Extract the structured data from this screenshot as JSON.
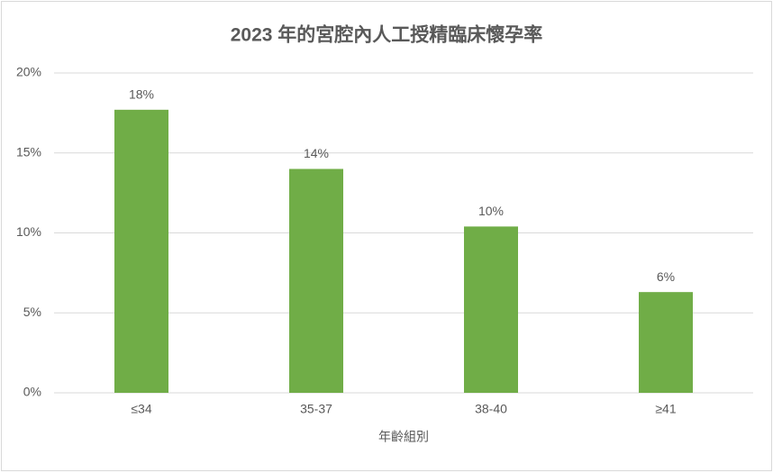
{
  "chart_data": {
    "type": "bar",
    "title": "2023 年的宮腔內人工授精臨床懷孕率",
    "x_label": "年齡組別",
    "categories": [
      "≤34",
      "35-37",
      "38-40",
      "≥41"
    ],
    "values": [
      17.7,
      14.0,
      10.4,
      6.3
    ],
    "value_labels": [
      "18%",
      "14%",
      "10%",
      "6%"
    ],
    "color": "#70ad47",
    "ylim": [
      0,
      20
    ],
    "yticks": [
      {
        "value": 0,
        "label": "0%"
      },
      {
        "value": 5,
        "label": "5%"
      },
      {
        "value": 10,
        "label": "10%"
      },
      {
        "value": 15,
        "label": "15%"
      },
      {
        "value": 20,
        "label": "20%"
      }
    ],
    "grid": true
  }
}
